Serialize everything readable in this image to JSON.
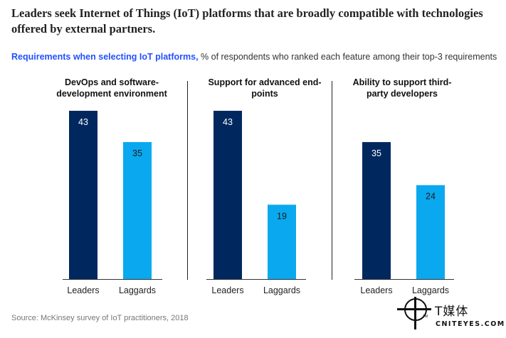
{
  "title": "Leaders seek Internet of Things (IoT) platforms that are broadly compatible with technologies offered by external partners.",
  "subtitle": {
    "bold": "Requirements when selecting IoT platforms,",
    "rest": " % of respondents who ranked each feature among their top-3 requirements"
  },
  "source": "Source: McKinsey survey of IoT practitioners, 2018",
  "logo": {
    "cn": "T媒体",
    "en": "CNITEYES.COM",
    "tm": "TM"
  },
  "colors": {
    "leaders": "#00285f",
    "laggards": "#0aa9ef",
    "accent": "#2251ff"
  },
  "chart_data": [
    {
      "type": "bar",
      "title": "DevOps and software-development environment",
      "categories": [
        "Leaders",
        "Laggards"
      ],
      "values": [
        43,
        35
      ],
      "ylim": [
        0,
        43
      ]
    },
    {
      "type": "bar",
      "title": "Support for advanced end-points",
      "categories": [
        "Leaders",
        "Laggards"
      ],
      "values": [
        43,
        19
      ],
      "ylim": [
        0,
        43
      ]
    },
    {
      "type": "bar",
      "title": "Ability to support third-party developers",
      "categories": [
        "Leaders",
        "Laggards"
      ],
      "values": [
        35,
        24
      ],
      "ylim": [
        0,
        43
      ]
    }
  ]
}
